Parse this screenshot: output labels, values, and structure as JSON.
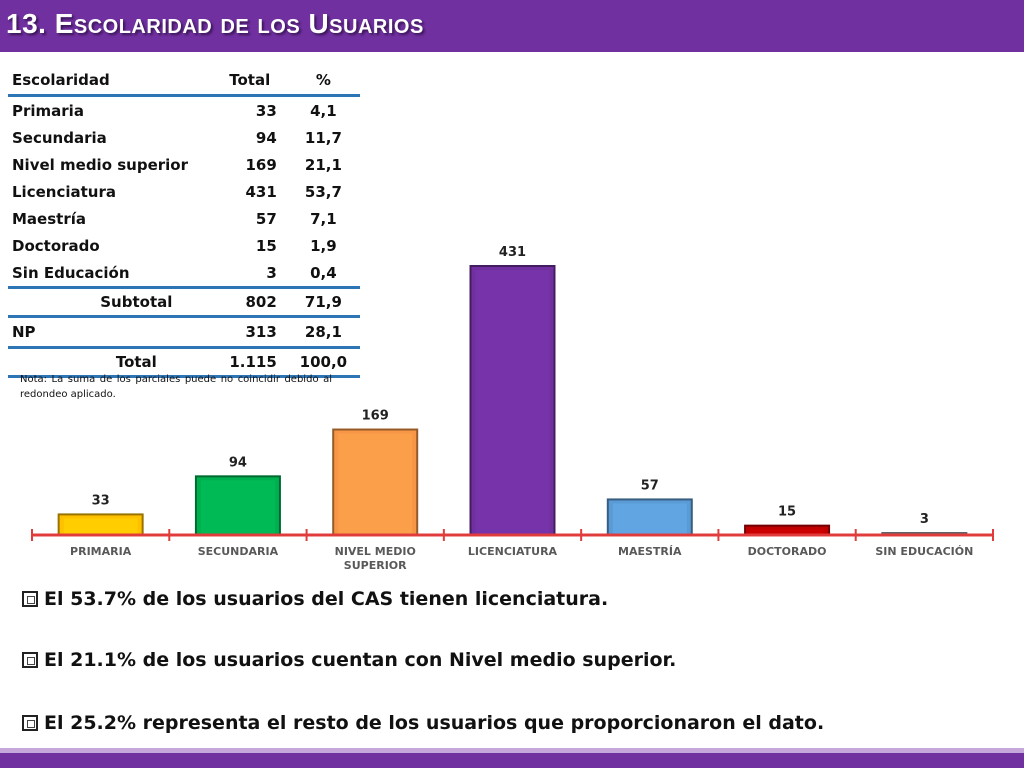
{
  "header": {
    "title": "13. Escolaridad de los Usuarios"
  },
  "table": {
    "headers": [
      "Escolaridad",
      "Total",
      "%"
    ],
    "rows": [
      [
        "Primaria",
        "33",
        "4,1"
      ],
      [
        "Secundaria",
        "94",
        "11,7"
      ],
      [
        "Nivel medio superior",
        "169",
        "21,1"
      ],
      [
        "Licenciatura",
        "431",
        "53,7"
      ],
      [
        "Maestría",
        "57",
        "7,1"
      ],
      [
        "Doctorado",
        "15",
        "1,9"
      ],
      [
        "Sin Educación",
        "3",
        "0,4"
      ]
    ],
    "subtotal": [
      "Subtotal",
      "802",
      "71,9"
    ],
    "np": [
      "NP",
      "313",
      "28,1"
    ],
    "total": [
      "Total",
      "1.115",
      "100,0"
    ],
    "note": "Nota: La suma de los parciales puede no coincidir debido al redondeo aplicado.",
    "rule_color": "#2e75b6"
  },
  "chart_data": {
    "type": "bar",
    "categories": [
      "PRIMARIA",
      "SECUNDARIA",
      "NIVEL MEDIO SUPERIOR",
      "LICENCIATURA",
      "MAESTRÍA",
      "DOCTORADO",
      "SIN EDUCACIÓN"
    ],
    "category_lines": [
      [
        "PRIMARIA"
      ],
      [
        "SECUNDARIA"
      ],
      [
        "NIVEL MEDIO",
        "SUPERIOR"
      ],
      [
        "LICENCIATURA"
      ],
      [
        "MAESTRÍA"
      ],
      [
        "DOCTORADO"
      ],
      [
        "SIN EDUCACIÓN"
      ]
    ],
    "values": [
      33,
      94,
      169,
      431,
      57,
      15,
      3
    ],
    "data_labels": [
      "33",
      "94",
      "169",
      "431",
      "57",
      "15",
      "3"
    ],
    "colors": [
      "#ffc000",
      "#00b050",
      "#f79646",
      "#7030a0",
      "#5b9bd5",
      "#c00000",
      "#a5a5a5"
    ],
    "axis_color": "#e03c3c",
    "ylim": [
      0,
      431
    ],
    "grid": false,
    "legend": "none"
  },
  "bullets": [
    "El 53.7% de los usuarios del CAS tienen licenciatura.",
    "El 21.1% de los usuarios cuentan con Nivel medio superior.",
    "El  25.2% representa el resto de los usuarios que proporcionaron el dato."
  ],
  "colors": {
    "header": "#7030a0",
    "bottom_stripe": "#c6a7dc"
  }
}
